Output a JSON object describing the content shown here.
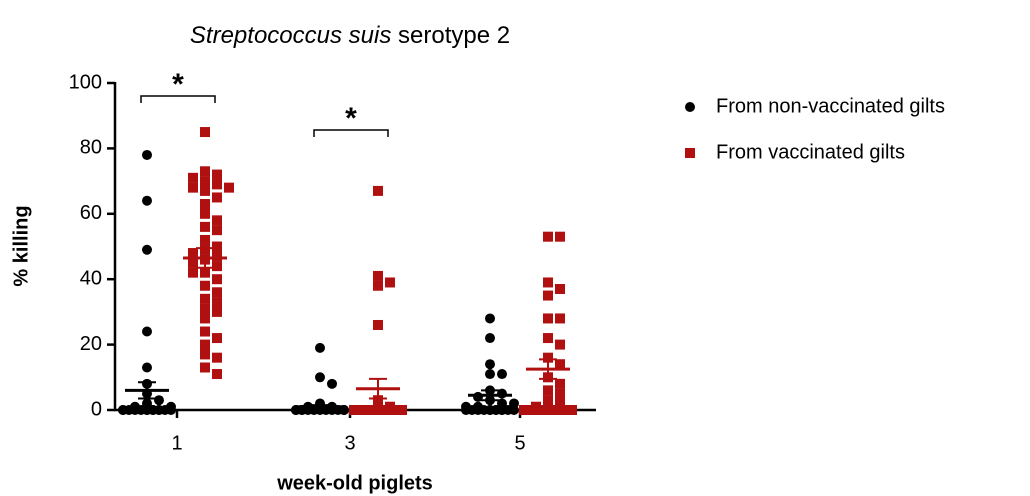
{
  "chart_data": {
    "type": "scatter",
    "title": {
      "italic": "Streptococcus suis",
      "text": "serotype 2"
    },
    "x_label": "week-old piglets",
    "y_label": "% killing",
    "categories": [
      "1",
      "3",
      "5"
    ],
    "ylim": [
      0,
      100
    ],
    "yticks": [
      0,
      20,
      40,
      60,
      80,
      100
    ],
    "legend": "right",
    "series": [
      {
        "name": "From non-vaccinated gilts",
        "color": "#000000",
        "marker": "circle",
        "values": [
          [
            78,
            64,
            49,
            24,
            13,
            8,
            5,
            3,
            2,
            1,
            1,
            0,
            0,
            0,
            0,
            0,
            0,
            0,
            0,
            0,
            0,
            0,
            0,
            0
          ],
          [
            19,
            10,
            8,
            2,
            1,
            1,
            0,
            0,
            0,
            0,
            0,
            0,
            0,
            0,
            0,
            0,
            0,
            0,
            0,
            0
          ],
          [
            28,
            22,
            14,
            11,
            11,
            6,
            5,
            4,
            3,
            2,
            2,
            1,
            1,
            0,
            0,
            0,
            0,
            0,
            0,
            0,
            0,
            0,
            0,
            0,
            0
          ]
        ],
        "mean": [
          6,
          1,
          4.5
        ],
        "sem": [
          2.5,
          0.5,
          1.5
        ]
      },
      {
        "name": "From vaccinated gilts",
        "color": "#b01010",
        "marker": "square",
        "values": [
          [
            85,
            73,
            72,
            71,
            70,
            69,
            68,
            68,
            67,
            65,
            63,
            60,
            58,
            56,
            55,
            52,
            50,
            49,
            48,
            47,
            46,
            45,
            44,
            42,
            42,
            40,
            38,
            36,
            34,
            33,
            31,
            30,
            28,
            24,
            22,
            20,
            17,
            16,
            13,
            11
          ],
          [
            67,
            41,
            39,
            38,
            26,
            3,
            1,
            0,
            0,
            0,
            0,
            0,
            0,
            0,
            0,
            0,
            0,
            0,
            0,
            0,
            0,
            0,
            0,
            0,
            0,
            0
          ],
          [
            53,
            53,
            39,
            37,
            35,
            28,
            28,
            22,
            20,
            16,
            14,
            10,
            8,
            6,
            5,
            3,
            2,
            1,
            0,
            0,
            0,
            0,
            0,
            0,
            0,
            0,
            0,
            0,
            0,
            0,
            0,
            0
          ]
        ],
        "mean": [
          46.5,
          6.5,
          12.5
        ],
        "sem": [
          3,
          3,
          3
        ]
      }
    ],
    "annotations": [
      {
        "text": "*",
        "category": 0
      },
      {
        "text": "*",
        "category": 1
      }
    ]
  }
}
